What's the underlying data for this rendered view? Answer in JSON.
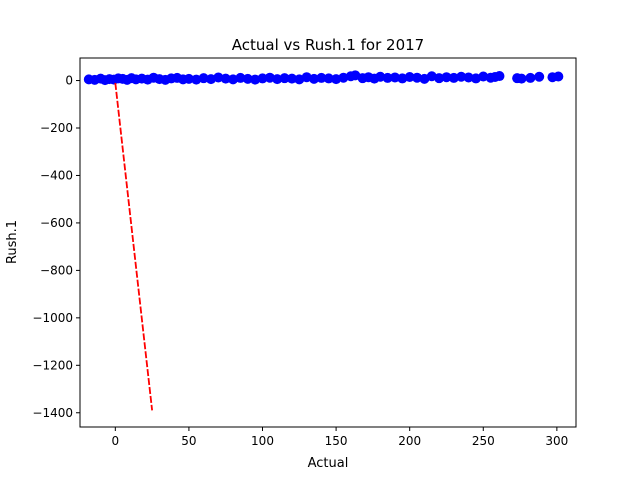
{
  "chart_data": {
    "type": "scatter",
    "title": "Actual vs Rush.1 for 2017",
    "xlabel": "Actual",
    "ylabel": "Rush.1",
    "xlim": [
      -24,
      313
    ],
    "ylim": [
      -1460,
      95
    ],
    "xticks": [
      0,
      50,
      100,
      150,
      200,
      250,
      300
    ],
    "yticks": [
      0,
      -200,
      -400,
      -600,
      -800,
      -1000,
      -1200,
      -1400
    ],
    "grid": false,
    "legend": "none",
    "colors": {
      "points": "#0000ff",
      "fit_line": "#ff0000",
      "axes": "#000000"
    },
    "series": [
      {
        "type": "scatter",
        "x": [
          -18,
          -14,
          -10,
          -7,
          -4,
          -1,
          2,
          5,
          8,
          11,
          14,
          18,
          22,
          26,
          30,
          34,
          38,
          42,
          46,
          50,
          55,
          60,
          65,
          70,
          75,
          80,
          85,
          90,
          95,
          100,
          105,
          110,
          115,
          120,
          125,
          130,
          135,
          140,
          145,
          150,
          155,
          160,
          163,
          168,
          172,
          176,
          180,
          185,
          190,
          195,
          200,
          205,
          210,
          215,
          220,
          225,
          230,
          235,
          240,
          245,
          250,
          255,
          258,
          261,
          273,
          276,
          282,
          288,
          297,
          301
        ],
        "y": [
          5,
          3,
          8,
          2,
          6,
          4,
          9,
          7,
          3,
          10,
          5,
          8,
          4,
          12,
          6,
          3,
          9,
          11,
          5,
          7,
          4,
          10,
          6,
          13,
          8,
          5,
          11,
          7,
          4,
          9,
          12,
          6,
          10,
          8,
          5,
          14,
          7,
          11,
          9,
          6,
          12,
          18,
          22,
          10,
          14,
          8,
          16,
          11,
          13,
          9,
          15,
          12,
          7,
          18,
          10,
          14,
          11,
          16,
          13,
          9,
          17,
          12,
          15,
          19,
          10,
          8,
          11,
          16,
          14,
          17
        ]
      },
      {
        "type": "line",
        "x": [
          0,
          25
        ],
        "y": [
          -10,
          -1390
        ]
      }
    ]
  }
}
